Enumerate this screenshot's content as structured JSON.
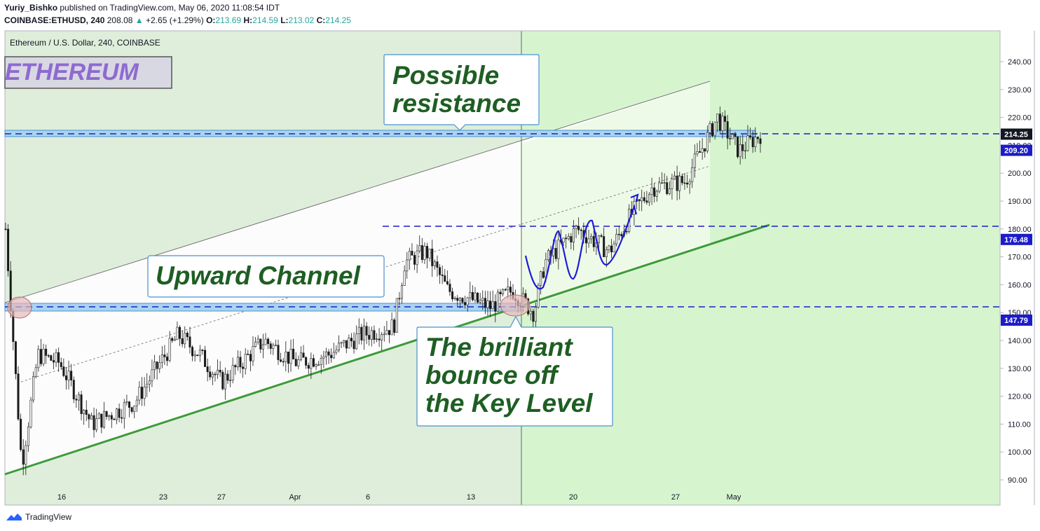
{
  "header": {
    "author": "Yuriy_Bishko",
    "published_text": "published on TradingView.com, May 06, 2020 11:08:54 IDT",
    "symbol": "COINBASE:ETHUSD, 240",
    "last": "208.08",
    "change": "+2.65 (+1.29%)",
    "open_label": "O:",
    "open": "213.69",
    "high_label": "H:",
    "high": "214.59",
    "low_label": "L:",
    "low": "213.02",
    "close_label": "C:",
    "close": "214.25"
  },
  "pane_title": "Ethereum / U.S. Dollar, 240, COINBASE",
  "logo_text": "ETHEREUM",
  "annotations": {
    "resistance_l1": "Possible",
    "resistance_l2": "resistance",
    "channel": "Upward Channel",
    "bounce_l1": "The brilliant",
    "bounce_l2": "bounce off",
    "bounce_l3": "the Key Level"
  },
  "footer": {
    "brand": "TradingView"
  },
  "colors": {
    "bg_green": "#deeedb",
    "bg_right": "#d6f5cf",
    "channel_fill": "#fbfcfb",
    "trend_green": "#3d9a38",
    "level_blue": "#1c1cc8",
    "annotation_text": "#1e5e23",
    "price_badge": "#131722"
  },
  "chart_data": {
    "type": "candlestick",
    "symbol": "COINBASE:ETHUSD",
    "timeframe": "240",
    "x_ticks": [
      "16",
      "23",
      "27",
      "Apr",
      "6",
      "13",
      "20",
      "27",
      "May"
    ],
    "y_ticks": [
      90,
      100,
      110,
      120,
      130,
      140,
      150,
      160,
      170,
      180,
      190,
      200,
      210,
      220,
      230,
      240
    ],
    "ylim": [
      86,
      247
    ],
    "horizontal_levels": [
      {
        "value": 209.2,
        "label": "209.20"
      },
      {
        "value": 176.48,
        "label": "176.48"
      },
      {
        "value": 147.79,
        "label": "147.79"
      }
    ],
    "last_price": {
      "value": 214.25,
      "label": "214.25"
    },
    "price_path": [
      {
        "x": 0.0,
        "close": 180
      },
      {
        "x": 1.5,
        "close": 95
      },
      {
        "x": 3,
        "close": 135
      },
      {
        "x": 5,
        "close": 132
      },
      {
        "x": 8,
        "close": 110
      },
      {
        "x": 12,
        "close": 118
      },
      {
        "x": 16,
        "close": 142
      },
      {
        "x": 18,
        "close": 135
      },
      {
        "x": 20,
        "close": 125
      },
      {
        "x": 24,
        "close": 140
      },
      {
        "x": 27,
        "close": 132
      },
      {
        "x": 30,
        "close": 135
      },
      {
        "x": 33,
        "close": 142
      },
      {
        "x": 36,
        "close": 145
      },
      {
        "x": 37,
        "close": 168
      },
      {
        "x": 39,
        "close": 172
      },
      {
        "x": 41,
        "close": 158
      },
      {
        "x": 43,
        "close": 155
      },
      {
        "x": 45,
        "close": 152
      },
      {
        "x": 47,
        "close": 158
      },
      {
        "x": 49,
        "close": 150
      },
      {
        "x": 50,
        "close": 168
      },
      {
        "x": 53,
        "close": 180
      },
      {
        "x": 56,
        "close": 172
      },
      {
        "x": 58,
        "close": 185
      },
      {
        "x": 60,
        "close": 195
      },
      {
        "x": 63,
        "close": 197
      },
      {
        "x": 65,
        "close": 212
      },
      {
        "x": 66,
        "close": 220
      },
      {
        "x": 68,
        "close": 208
      },
      {
        "x": 70,
        "close": 214
      }
    ]
  }
}
